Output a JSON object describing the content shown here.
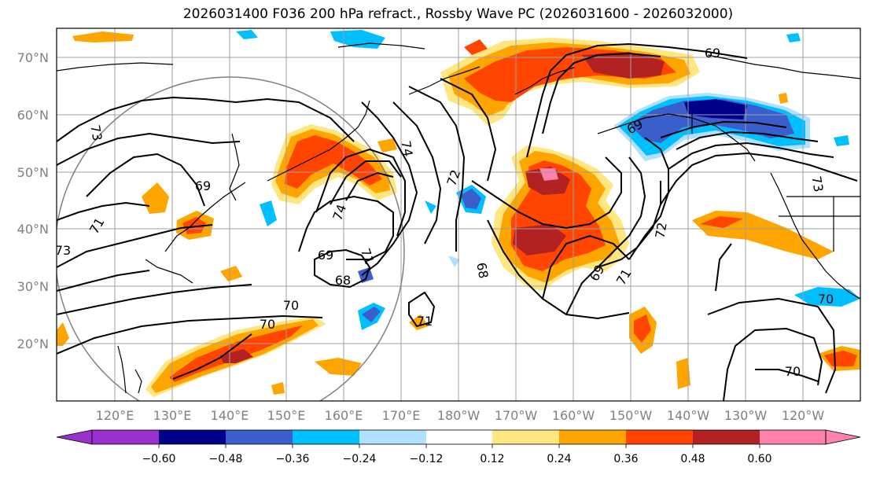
{
  "title": "2026031400 F036 200 hPa refract., Rossby Wave PC (2026031600 - 2026032000)",
  "lat_labels": [
    "70°N",
    "60°N",
    "50°N",
    "40°N",
    "30°N",
    "20°N"
  ],
  "lon_labels": [
    "120°E",
    "130°E",
    "140°E",
    "150°E",
    "160°E",
    "170°E",
    "180°W",
    "170°W",
    "160°W",
    "150°W",
    "140°W",
    "130°W",
    "120°W"
  ],
  "colorbar": {
    "ticks": [
      "−0.60",
      "−0.48",
      "−0.36",
      "−0.24",
      "−0.12",
      "0.12",
      "0.24",
      "0.36",
      "0.48",
      "0.60"
    ],
    "colors": [
      "#9932cc",
      "#00008b",
      "#3a5fcd",
      "#00bfff",
      "#b0e2ff",
      "#ffffff",
      "#ffe680",
      "#ffa500",
      "#ff4500",
      "#b22222",
      "#ff82ab"
    ]
  },
  "contour_labels": [
    "69",
    "73",
    "74",
    "69",
    "72",
    "74",
    "73",
    "69",
    "68",
    "72",
    "70",
    "71",
    "69",
    "68",
    "70",
    "70",
    "71",
    "69",
    "71",
    "73",
    "70",
    "71"
  ]
}
